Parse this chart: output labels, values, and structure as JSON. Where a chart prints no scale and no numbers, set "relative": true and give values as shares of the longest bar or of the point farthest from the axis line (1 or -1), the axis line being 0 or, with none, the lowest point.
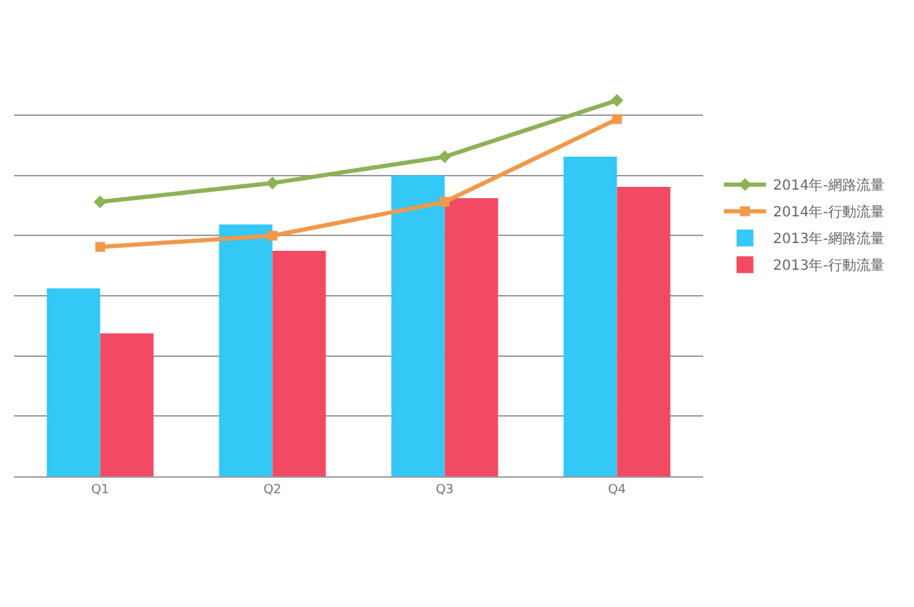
{
  "chart_data": {
    "type": "bar",
    "relative": true,
    "grid": "y",
    "legend": "right",
    "categories": [
      "Q1",
      "Q2",
      "Q3",
      "Q4"
    ],
    "series": [
      {
        "name": "2014年-網路流量",
        "type": "line",
        "color": "#8db255",
        "marker": "diamond",
        "values": [
          0.73,
          0.78,
          0.85,
          1
        ]
      },
      {
        "name": "2014年-行動流量",
        "type": "line",
        "color": "#f0994a",
        "marker": "square",
        "values": [
          0.61,
          0.64,
          0.73,
          0.95
        ]
      },
      {
        "name": "2013年-網路流量",
        "type": "bar",
        "color": "#33c8f5",
        "values": [
          0.5,
          0.67,
          0.8,
          0.85
        ]
      },
      {
        "name": "2013年-行動流量",
        "type": "bar",
        "color": "#f24a63",
        "values": [
          0.38,
          0.6,
          0.74,
          0.77
        ]
      }
    ]
  }
}
